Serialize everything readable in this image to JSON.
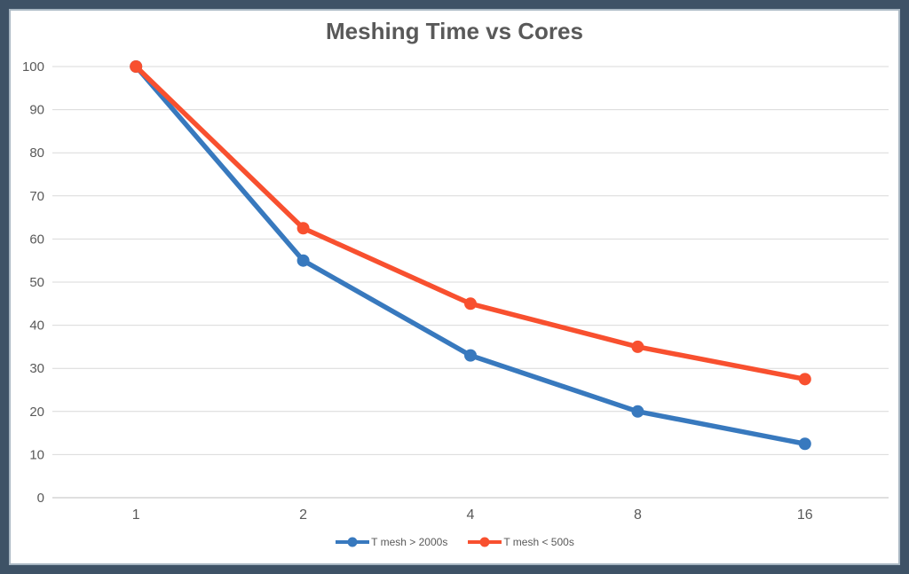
{
  "frame": {
    "border_color": "#3E5266",
    "inner_line_color": "#A9B7C3",
    "canvas_color": "#FFFFFF"
  },
  "styles": {
    "title_color": "#595959",
    "tick_label_color": "#595959",
    "legend_text_color": "#595959",
    "gridline_color": "#D9D9D9",
    "axis_line_color": "#BFBFBF"
  },
  "chart_data": {
    "type": "line",
    "title": "Meshing Time vs Cores",
    "xlabel": "",
    "ylabel": "",
    "categories": [
      "1",
      "2",
      "4",
      "8",
      "16"
    ],
    "series": [
      {
        "name": "T mesh > 2000s",
        "color": "#3879BE",
        "values": [
          100,
          55,
          33,
          20,
          12.5
        ]
      },
      {
        "name": "T mesh < 500s",
        "color": "#F8502F",
        "values": [
          100,
          62.5,
          45,
          35,
          27.5
        ]
      }
    ],
    "ylim": [
      0,
      100
    ],
    "ytick_step": 10,
    "ytick_labels": [
      "0",
      "10",
      "20",
      "30",
      "40",
      "50",
      "60",
      "70",
      "80",
      "90",
      "100"
    ],
    "grid": true,
    "legend_position": "bottom-center",
    "marker": "circle"
  }
}
